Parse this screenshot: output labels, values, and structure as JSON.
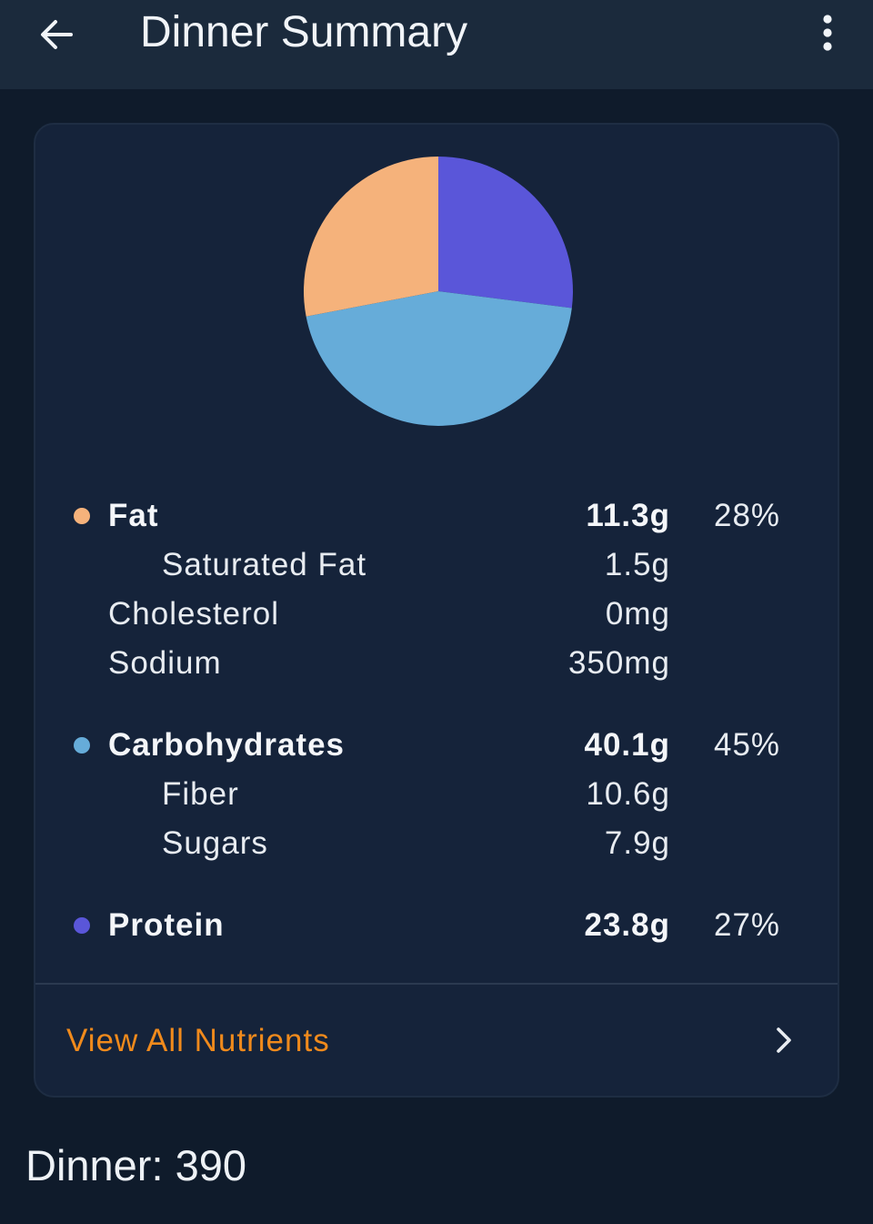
{
  "header": {
    "title": "Dinner Summary",
    "back_icon": "arrow-left-icon",
    "menu_icon": "more-vert-icon"
  },
  "colors": {
    "fat": "#f5b27b",
    "carbohydrates": "#66acd9",
    "protein": "#5a56d9",
    "link": "#f08a1c"
  },
  "chart_data": {
    "type": "pie",
    "slices": [
      {
        "name": "Protein",
        "value": 27,
        "color": "#5a56d9"
      },
      {
        "name": "Carbohydrates",
        "value": 45,
        "color": "#66acd9"
      },
      {
        "name": "Fat",
        "value": 28,
        "color": "#f5b27b"
      }
    ]
  },
  "nutrients": {
    "fat": {
      "label": "Fat",
      "amount": "11.3g",
      "percent": "28%"
    },
    "saturated_fat": {
      "label": "Saturated Fat",
      "amount": "1.5g"
    },
    "cholesterol": {
      "label": "Cholesterol",
      "amount": "0mg"
    },
    "sodium": {
      "label": "Sodium",
      "amount": "350mg"
    },
    "carbohydrates": {
      "label": "Carbohydrates",
      "amount": "40.1g",
      "percent": "45%"
    },
    "fiber": {
      "label": "Fiber",
      "amount": "10.6g"
    },
    "sugars": {
      "label": "Sugars",
      "amount": "7.9g"
    },
    "protein": {
      "label": "Protein",
      "amount": "23.8g",
      "percent": "27%"
    }
  },
  "view_all": {
    "label": "View All Nutrients",
    "icon": "chevron-right-icon"
  },
  "footer": {
    "text": "Dinner: 390"
  }
}
